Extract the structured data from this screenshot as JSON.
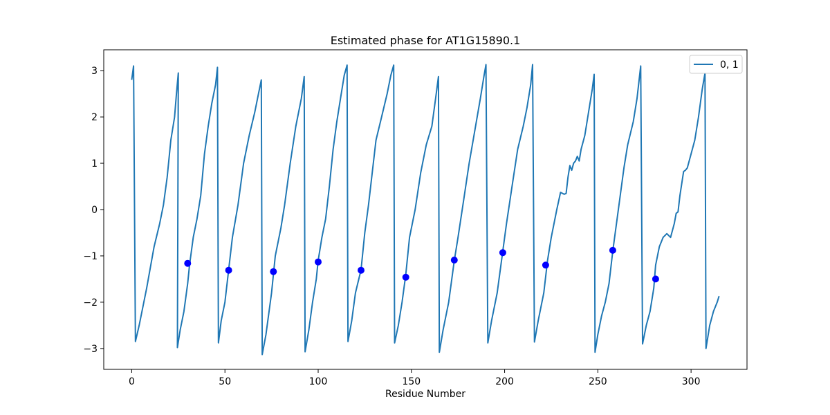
{
  "chart_data": {
    "type": "line",
    "title": "Estimated phase for AT1G15890.1",
    "xlabel": "Residue Number",
    "ylabel": "",
    "xlim": [
      -15,
      330
    ],
    "ylim": [
      -3.45,
      3.45
    ],
    "xticks": [
      0,
      50,
      100,
      150,
      200,
      250,
      300
    ],
    "yticks": [
      -3,
      -2,
      -1,
      0,
      1,
      2,
      3
    ],
    "ytick_labels": [
      "−3",
      "−2",
      "−1",
      "0",
      "1",
      "2",
      "3"
    ],
    "grid": false,
    "legend": {
      "position": "top-right",
      "entries": [
        "0, 1"
      ]
    },
    "series": [
      {
        "name": "0, 1",
        "color": "#1f77b4",
        "points": [
          [
            0,
            2.8
          ],
          [
            1,
            3.1
          ],
          [
            2,
            -2.85
          ],
          [
            4,
            -2.5
          ],
          [
            8,
            -1.7
          ],
          [
            12,
            -0.8
          ],
          [
            15,
            -0.3
          ],
          [
            17,
            0.1
          ],
          [
            19,
            0.7
          ],
          [
            21,
            1.5
          ],
          [
            23,
            2.0
          ],
          [
            24,
            2.5
          ],
          [
            25,
            2.95
          ],
          [
            24.5,
            -2.98
          ],
          [
            26,
            -2.6
          ],
          [
            28,
            -2.2
          ],
          [
            30,
            -1.6
          ],
          [
            31,
            -1.2
          ],
          [
            33,
            -0.6
          ],
          [
            35,
            -0.2
          ],
          [
            37,
            0.3
          ],
          [
            39,
            1.2
          ],
          [
            41,
            1.8
          ],
          [
            43,
            2.3
          ],
          [
            45,
            2.7
          ],
          [
            46,
            3.07
          ],
          [
            46.5,
            -2.88
          ],
          [
            48,
            -2.4
          ],
          [
            50,
            -2.0
          ],
          [
            52,
            -1.3
          ],
          [
            54,
            -0.6
          ],
          [
            57,
            0.1
          ],
          [
            60,
            1.0
          ],
          [
            63,
            1.6
          ],
          [
            66,
            2.1
          ],
          [
            68,
            2.5
          ],
          [
            69.5,
            2.8
          ],
          [
            70,
            -3.13
          ],
          [
            72,
            -2.7
          ],
          [
            75,
            -1.8
          ],
          [
            77,
            -1.0
          ],
          [
            80,
            -0.4
          ],
          [
            82,
            0.1
          ],
          [
            85,
            1.0
          ],
          [
            88,
            1.8
          ],
          [
            91,
            2.4
          ],
          [
            92.5,
            2.87
          ],
          [
            93,
            -3.07
          ],
          [
            95,
            -2.6
          ],
          [
            97,
            -2.0
          ],
          [
            99,
            -1.5
          ],
          [
            100,
            -1.1
          ],
          [
            102,
            -0.6
          ],
          [
            104,
            -0.2
          ],
          [
            106,
            0.5
          ],
          [
            108,
            1.3
          ],
          [
            110,
            1.9
          ],
          [
            112,
            2.4
          ],
          [
            114,
            2.9
          ],
          [
            115.5,
            3.12
          ],
          [
            116,
            -2.85
          ],
          [
            118,
            -2.4
          ],
          [
            120,
            -1.8
          ],
          [
            123,
            -1.3
          ],
          [
            125,
            -0.5
          ],
          [
            127,
            0.1
          ],
          [
            129,
            0.8
          ],
          [
            131,
            1.5
          ],
          [
            134,
            2.0
          ],
          [
            137,
            2.5
          ],
          [
            139,
            2.9
          ],
          [
            140.5,
            3.12
          ],
          [
            141,
            -2.88
          ],
          [
            143,
            -2.5
          ],
          [
            145,
            -2.0
          ],
          [
            147,
            -1.4
          ],
          [
            149,
            -0.6
          ],
          [
            152,
            0.0
          ],
          [
            155,
            0.8
          ],
          [
            158,
            1.4
          ],
          [
            161,
            1.8
          ],
          [
            163,
            2.4
          ],
          [
            164.5,
            2.87
          ],
          [
            165,
            -3.08
          ],
          [
            167,
            -2.6
          ],
          [
            170,
            -2.0
          ],
          [
            173,
            -1.1
          ],
          [
            175,
            -0.6
          ],
          [
            178,
            0.2
          ],
          [
            181,
            1.0
          ],
          [
            184,
            1.7
          ],
          [
            187,
            2.4
          ],
          [
            189,
            2.9
          ],
          [
            190,
            3.13
          ],
          [
            191,
            -2.88
          ],
          [
            193,
            -2.4
          ],
          [
            196,
            -1.8
          ],
          [
            199,
            -0.9
          ],
          [
            201,
            -0.3
          ],
          [
            204,
            0.5
          ],
          [
            207,
            1.3
          ],
          [
            210,
            1.8
          ],
          [
            212,
            2.2
          ],
          [
            214,
            2.7
          ],
          [
            215,
            3.13
          ],
          [
            216,
            -2.86
          ],
          [
            218,
            -2.4
          ],
          [
            221,
            -1.8
          ],
          [
            223,
            -1.1
          ],
          [
            225,
            -0.6
          ],
          [
            228,
            0.0
          ],
          [
            230,
            0.37
          ],
          [
            232,
            0.33
          ],
          [
            233,
            0.35
          ],
          [
            234,
            0.7
          ],
          [
            235,
            0.95
          ],
          [
            236,
            0.85
          ],
          [
            237,
            1.0
          ],
          [
            238,
            1.05
          ],
          [
            239,
            1.15
          ],
          [
            240,
            1.05
          ],
          [
            241,
            1.3
          ],
          [
            243,
            1.6
          ],
          [
            245,
            2.1
          ],
          [
            247,
            2.6
          ],
          [
            248,
            2.92
          ],
          [
            248.5,
            -3.08
          ],
          [
            250,
            -2.7
          ],
          [
            252,
            -2.3
          ],
          [
            254,
            -2.0
          ],
          [
            256,
            -1.6
          ],
          [
            258,
            -0.9
          ],
          [
            260,
            -0.3
          ],
          [
            262,
            0.3
          ],
          [
            264,
            0.9
          ],
          [
            266,
            1.4
          ],
          [
            269,
            1.9
          ],
          [
            271,
            2.4
          ],
          [
            273,
            3.1
          ],
          [
            274,
            -2.9
          ],
          [
            276,
            -2.5
          ],
          [
            278,
            -2.2
          ],
          [
            280,
            -1.7
          ],
          [
            281,
            -1.2
          ],
          [
            283,
            -0.8
          ],
          [
            285,
            -0.6
          ],
          [
            287,
            -0.52
          ],
          [
            289,
            -0.6
          ],
          [
            291,
            -0.3
          ],
          [
            292,
            -0.08
          ],
          [
            293,
            -0.05
          ],
          [
            294,
            0.3
          ],
          [
            296,
            0.82
          ],
          [
            297,
            0.85
          ],
          [
            298,
            0.9
          ],
          [
            300,
            1.2
          ],
          [
            302,
            1.5
          ],
          [
            304,
            2.0
          ],
          [
            306,
            2.6
          ],
          [
            307.5,
            2.95
          ],
          [
            308,
            -3.0
          ],
          [
            310,
            -2.5
          ],
          [
            312,
            -2.2
          ],
          [
            314,
            -2.0
          ],
          [
            315,
            -1.87
          ]
        ]
      }
    ],
    "markers": {
      "color": "#0000ff",
      "points": [
        [
          30,
          -1.16
        ],
        [
          52,
          -1.31
        ],
        [
          76,
          -1.34
        ],
        [
          100,
          -1.13
        ],
        [
          123,
          -1.31
        ],
        [
          147,
          -1.46
        ],
        [
          173,
          -1.09
        ],
        [
          199,
          -0.93
        ],
        [
          222,
          -1.2
        ],
        [
          258,
          -0.88
        ],
        [
          281,
          -1.5
        ]
      ]
    }
  }
}
